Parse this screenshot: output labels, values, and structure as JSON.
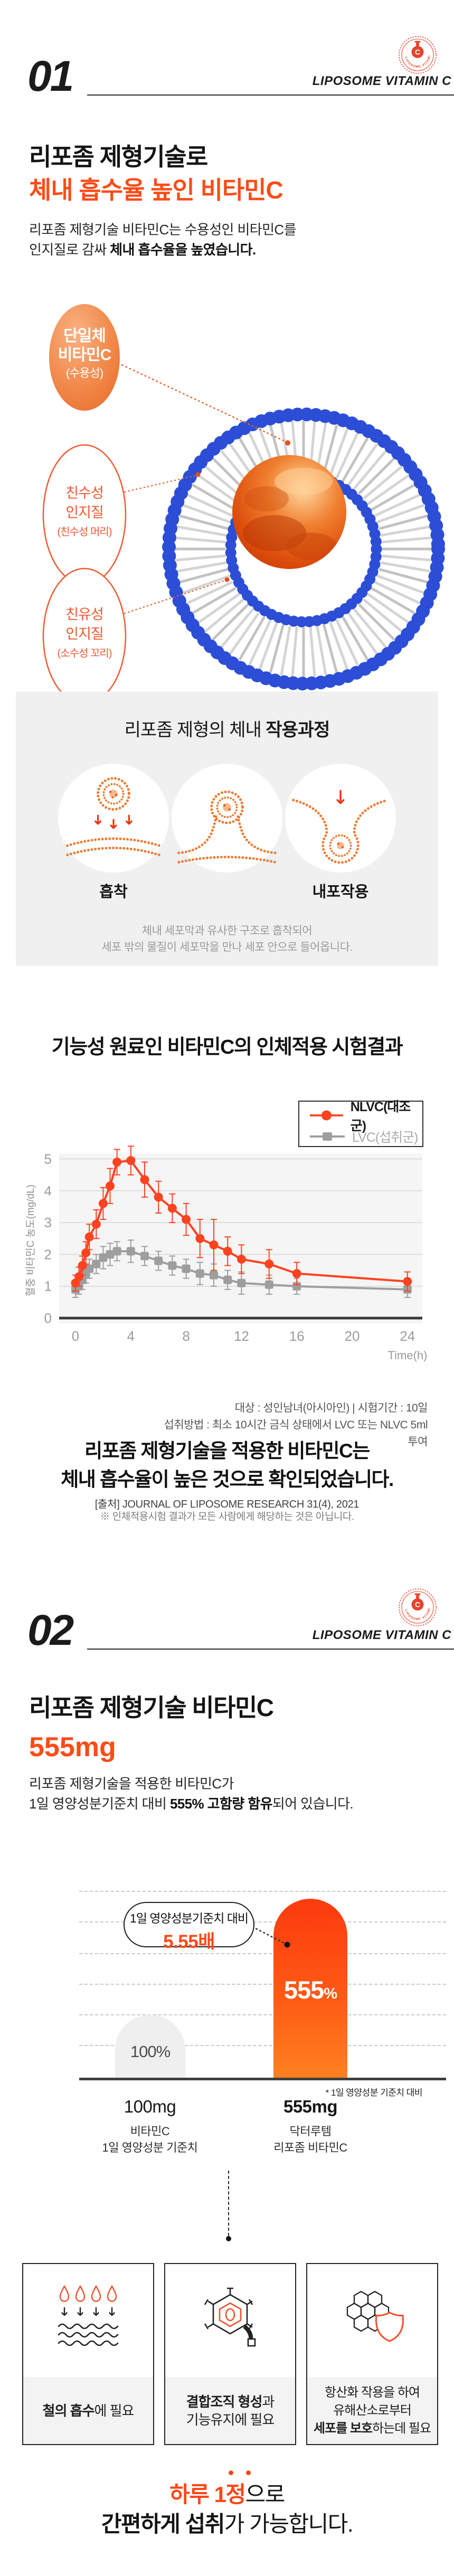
{
  "colors": {
    "accent_orange": "#ff4b16",
    "logo_red": "#e8432a",
    "series_nlvc": "#ff4220",
    "series_lvc": "#9e9e9e",
    "bead_blue": "#2c4ed6",
    "gray_section_bg": "#f0f0f0",
    "bar_gradient_top": "#fc3a0e",
    "bar_gradient_bottom": "#ff8121"
  },
  "header1": {
    "number": "01",
    "brand": "LIPOSOME VITAMIN C"
  },
  "section1": {
    "heading_line1": "리포좀 제형기술로",
    "heading_line2": "체내 흡수율 높인 비타민C",
    "body_line1": "리포좀 제형기술 비타민C는 수용성인 비타민C를",
    "body_line2_prefix": "인지질로 감싸 ",
    "body_line2_bold": "체내 흡수율을 높였습니다.",
    "figure": {
      "bubble": {
        "line1": "단일체",
        "line2": "비타민C",
        "line3": "(수용성)"
      },
      "label1": {
        "line1": "친수성",
        "line2": "인지질",
        "line3": "(친수성 머리)"
      },
      "label2": {
        "line1": "친유성",
        "line2": "인지질",
        "line3": "(소수성 꼬리)"
      }
    },
    "process": {
      "title_prefix": "리포좀 제형의 체내 ",
      "title_bold": "작용과정",
      "step1_label": "흡착",
      "step3_label": "내포작용",
      "caption_line1": "체내 세포막과 유사한 구조로 흡착되어",
      "caption_line2": "세포 밖의 물질이 세포막을 만나 세포 안으로 들어옵니다."
    }
  },
  "study": {
    "title": "기능성 원료인 비타민C의 인체적용 시험결과",
    "note_line1": "대상 : 성인남녀(아시아인)  |  시험기간 : 10일",
    "note_line2": "섭취방법 : 최소 10시간 금식 상태에서 LVC 또는 NLVC 5ml 투여",
    "statement_line1": "리포좀 제형기술을 적용한 비타민C는",
    "statement_line2": "체내 흡수율이 높은 것으로 확인되었습니다.",
    "source": "[출처] JOURNAL OF LIPOSOME RESEARCH 31(4), 2021",
    "disclaimer": "※ 인체적용시험 결과가 모든 사람에게 해당하는 것은 아닙니다."
  },
  "chart_data": [
    {
      "type": "line",
      "title": "기능성 원료인 비타민C의 인체적용 시험결과",
      "xlabel": "Time(h)",
      "ylabel": "혈중 비타민C 농도(mg/dL)",
      "xlim": [
        0,
        24
      ],
      "ylim": [
        0,
        5
      ],
      "x_ticks": [
        0,
        4,
        8,
        12,
        16,
        20,
        24
      ],
      "y_ticks": [
        0,
        1,
        2,
        3,
        4,
        5
      ],
      "grid": true,
      "legend_position": "top-right",
      "x": [
        0,
        0.25,
        0.5,
        0.75,
        1,
        1.5,
        2,
        2.5,
        3,
        4,
        5,
        6,
        7,
        8,
        9,
        10,
        11,
        12,
        14,
        16,
        24
      ],
      "series": [
        {
          "name": "NLVC(대조군)",
          "color": "#ff4220",
          "marker": "circle",
          "values": [
            1.1,
            1.3,
            1.65,
            2.05,
            2.55,
            2.95,
            3.6,
            4.15,
            4.9,
            4.95,
            4.35,
            3.8,
            3.45,
            3.1,
            2.5,
            2.3,
            2.1,
            1.85,
            1.7,
            1.4,
            1.15
          ],
          "errors": [
            0.25,
            0.3,
            0.3,
            0.35,
            0.4,
            0.45,
            0.5,
            0.55,
            0.4,
            0.45,
            0.55,
            0.5,
            0.45,
            0.5,
            0.6,
            0.8,
            0.45,
            0.45,
            0.45,
            0.35,
            0.3
          ]
        },
        {
          "name": "LVC(섭취군)",
          "color": "#9e9e9e",
          "marker": "square",
          "values": [
            0.9,
            1.0,
            1.2,
            1.4,
            1.55,
            1.7,
            1.9,
            2.0,
            2.1,
            2.1,
            1.95,
            1.8,
            1.65,
            1.55,
            1.4,
            1.35,
            1.2,
            1.1,
            1.05,
            1.0,
            0.9
          ],
          "errors": [
            0.25,
            0.25,
            0.3,
            0.3,
            0.3,
            0.3,
            0.35,
            0.35,
            0.3,
            0.35,
            0.3,
            0.3,
            0.3,
            0.3,
            0.35,
            0.35,
            0.3,
            0.35,
            0.3,
            0.25,
            0.25
          ]
        }
      ]
    },
    {
      "type": "bar",
      "categories": [
        "비타민C 1일 영양성분 기준치 (100mg)",
        "닥터루템 리포좀 비타민C (555mg)"
      ],
      "values": [
        100,
        555
      ],
      "unit": "%",
      "callout": {
        "line1": "1일 영양성분기준치 대비",
        "line2": "5.55배"
      },
      "footnote": "* 1일 영양성분 기준치 대비",
      "bars": [
        {
          "pct": "100%",
          "amount": "100mg",
          "sub1": "비타민C",
          "sub2": "1일 영양성분 기준치"
        },
        {
          "pct_value": "555",
          "pct_unit": "%",
          "amount": "555mg",
          "sub1": "닥터루템",
          "sub2": "리포좀 비타민C"
        }
      ]
    }
  ],
  "header2": {
    "number": "02",
    "brand": "LIPOSOME VITAMIN C"
  },
  "section2": {
    "heading_line1": "리포좀 제형기술 비타민C",
    "heading_line2": "555mg",
    "body_line1": "리포좀 제형기술을 적용한 비타민C가",
    "body_line2_prefix": "1일 영양성분기준치 대비 ",
    "body_line2_bold": "555% 고함량 함유",
    "body_line2_suffix": "되어 있습니다.",
    "benefits": [
      {
        "icon": "iron-absorption-icon",
        "line1_bold": "철의 흡수",
        "line1_rest": "에 필요"
      },
      {
        "icon": "connective-tissue-icon",
        "line1_bold": "결합조직 형성",
        "line1_rest": "과",
        "line2": "기능유지에 필요"
      },
      {
        "icon": "antioxidant-shield-icon",
        "line1": "항산화 작용을 하여",
        "line2": "유해산소로부터",
        "line3_bold": "세포를 보호",
        "line3_rest": "하는데 필요"
      }
    ],
    "closing": {
      "line1_orange": "하루 1정",
      "line1_rest": "으로",
      "line2_bold": "간편하게 섭취",
      "line2_rest": "가 가능합니다."
    }
  }
}
